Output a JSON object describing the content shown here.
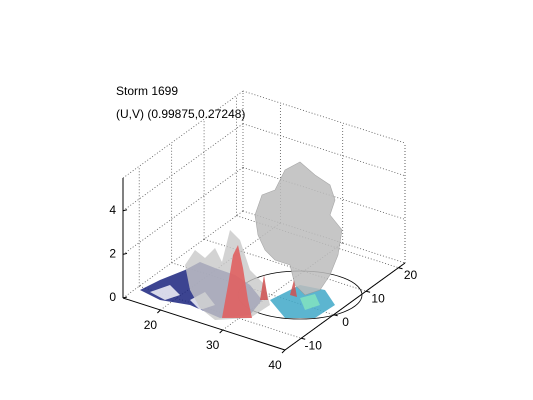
{
  "chart_data": {
    "type": "isosurface3d",
    "title": "Storm 1699",
    "subtitle": "(U,V) (0.99875,0.27248)",
    "xlim": [
      14,
      40
    ],
    "xticks": [
      20,
      30,
      40
    ],
    "ylim": [
      -15,
      22
    ],
    "yticks": [
      -10,
      0,
      10,
      20
    ],
    "zlim": [
      0,
      5.5
    ],
    "zticks": [
      0,
      2,
      4
    ],
    "grid": true
  }
}
